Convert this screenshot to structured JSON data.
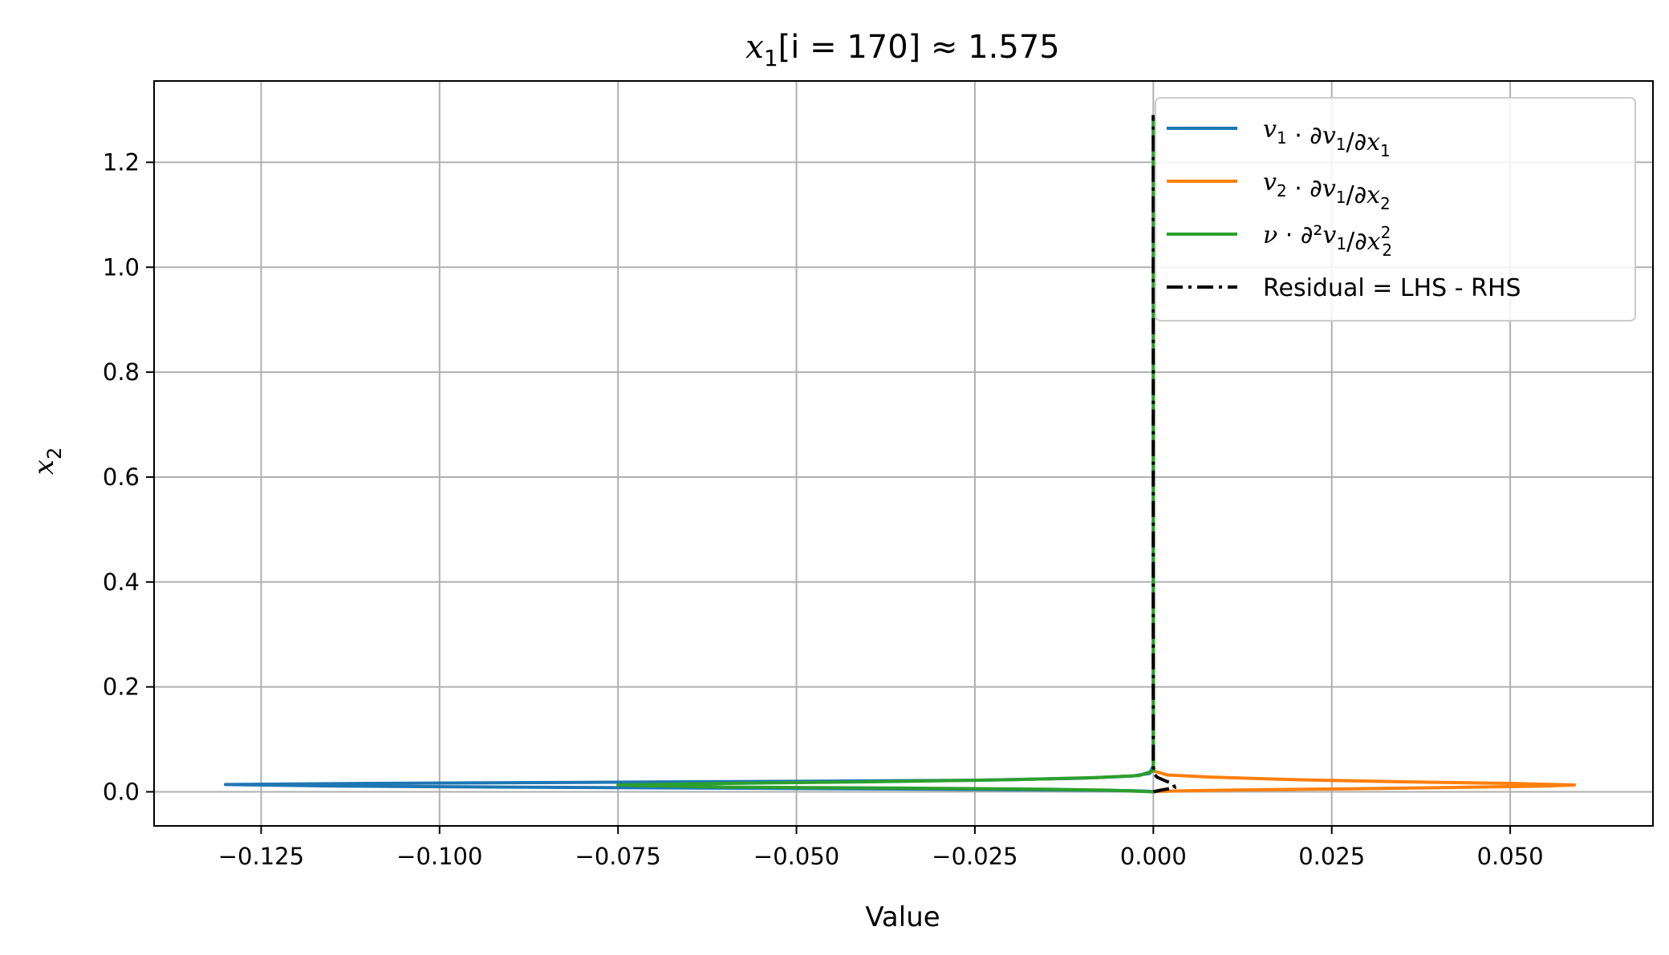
{
  "chart_data": {
    "type": "line",
    "title_main": "x",
    "title_sub": "1",
    "title_rest": "[i = 170]  ≈ 1.575",
    "xlabel": "Value",
    "ylabel_main": "x",
    "ylabel_sub": "2",
    "xlim": [
      -0.14,
      0.07
    ],
    "ylim": [
      -0.065,
      1.355
    ],
    "x_ticks": [
      -0.125,
      -0.1,
      -0.075,
      -0.05,
      -0.025,
      0.0,
      0.025,
      0.05
    ],
    "x_tick_labels": [
      "−0.125",
      "−0.100",
      "−0.075",
      "−0.050",
      "−0.025",
      "0.000",
      "0.025",
      "0.050"
    ],
    "y_ticks": [
      0.0,
      0.2,
      0.4,
      0.6,
      0.8,
      1.0,
      1.2
    ],
    "y_tick_labels": [
      "0.0",
      "0.2",
      "0.4",
      "0.6",
      "0.8",
      "1.0",
      "1.2"
    ],
    "grid": true,
    "legend_position": "top-right",
    "series": [
      {
        "name": "v₁ · ∂v₁/∂x₁",
        "legend_parts": [
          [
            "v",
            "1"
          ],
          [
            " · ∂",
            ""
          ],
          [
            "v",
            "1"
          ],
          [
            "/∂",
            ""
          ],
          [
            "x",
            "1"
          ]
        ],
        "color": "#1f77b4",
        "style": "solid",
        "x": [
          0.0,
          -0.0005,
          -0.003,
          -0.01,
          -0.03,
          -0.06,
          -0.09,
          -0.115,
          -0.13,
          -0.11,
          -0.08,
          -0.05,
          -0.025,
          -0.01,
          -0.003,
          -0.0005,
          0.0,
          0.0,
          0.0
        ],
        "y": [
          0.0,
          0.001,
          0.002,
          0.003,
          0.005,
          0.007,
          0.009,
          0.011,
          0.014,
          0.016,
          0.018,
          0.02,
          0.022,
          0.026,
          0.03,
          0.035,
          0.05,
          0.5,
          1.29
        ]
      },
      {
        "name": "v₂ · ∂v₁/∂x₂",
        "legend_parts": [
          [
            "v",
            "2"
          ],
          [
            " · ∂",
            ""
          ],
          [
            "v",
            "1"
          ],
          [
            "/∂",
            ""
          ],
          [
            "x",
            "2"
          ]
        ],
        "color": "#ff7f0e",
        "style": "solid",
        "x": [
          0.0,
          0.001,
          0.005,
          0.015,
          0.03,
          0.045,
          0.055,
          0.059,
          0.05,
          0.035,
          0.02,
          0.008,
          0.002,
          0.0,
          0.0,
          0.0
        ],
        "y": [
          0.0,
          0.001,
          0.002,
          0.004,
          0.006,
          0.009,
          0.011,
          0.013,
          0.016,
          0.019,
          0.023,
          0.028,
          0.032,
          0.04,
          0.5,
          1.29
        ]
      },
      {
        "name": "ν · ∂²v₁/∂x₂²",
        "legend_parts": [
          [
            "ν",
            ""
          ],
          [
            " · ∂²",
            ""
          ],
          [
            "v",
            "1"
          ],
          [
            "/∂",
            ""
          ],
          [
            "x",
            "2",
            "2"
          ]
        ],
        "color": "#2ca02c",
        "style": "solid",
        "x": [
          0.0,
          -0.002,
          -0.006,
          -0.015,
          -0.035,
          -0.06,
          -0.075,
          -0.06,
          -0.04,
          -0.02,
          -0.008,
          -0.002,
          0.0,
          0.0,
          0.0
        ],
        "y": [
          0.0,
          0.001,
          0.003,
          0.005,
          0.007,
          0.009,
          0.013,
          0.016,
          0.019,
          0.023,
          0.027,
          0.031,
          0.04,
          0.5,
          1.29
        ]
      },
      {
        "name": "Residual = LHS - RHS",
        "legend_parts": [
          [
            "Residual = LHS - RHS",
            ""
          ]
        ],
        "color": "#000000",
        "style": "dashdot",
        "x": [
          0.0,
          0.001,
          0.003,
          0.0028,
          0.0015,
          0.0005,
          0.0001,
          0.0,
          0.0,
          0.0
        ],
        "y": [
          0.0,
          0.003,
          0.008,
          0.015,
          0.022,
          0.028,
          0.035,
          0.05,
          0.5,
          1.29
        ]
      }
    ]
  }
}
